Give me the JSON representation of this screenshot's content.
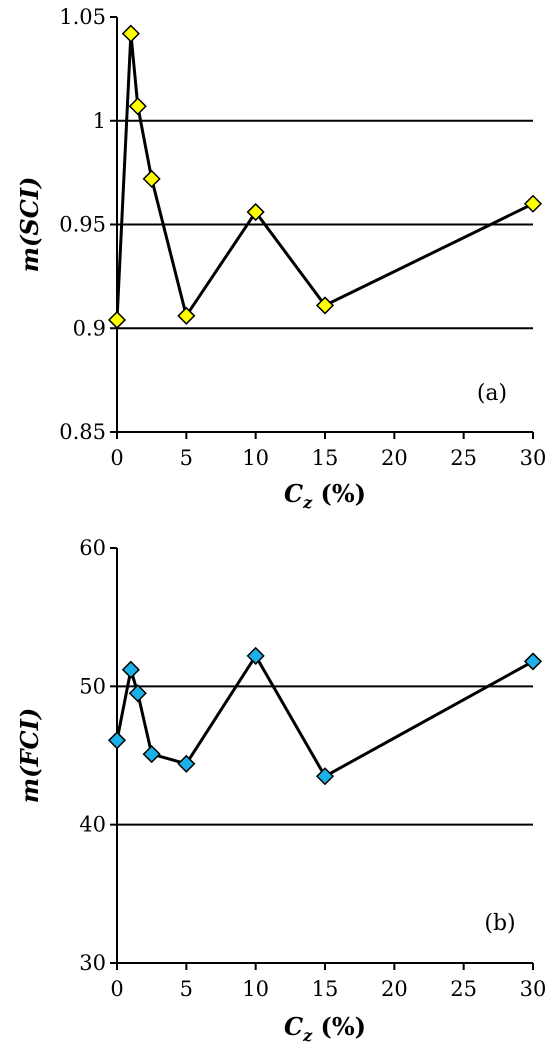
{
  "chart_data": [
    {
      "type": "line",
      "panel_label": "(a)",
      "x": [
        0,
        1,
        1.5,
        2.5,
        5,
        10,
        15,
        30
      ],
      "series": [
        {
          "values": [
            0.904,
            1.042,
            1.007,
            0.972,
            0.906,
            0.956,
            0.911,
            0.96
          ],
          "marker": "diamond",
          "color": "#ffff00"
        }
      ],
      "xlim": [
        0,
        30
      ],
      "ylim": [
        0.85,
        1.05
      ],
      "xticks": [
        0,
        5,
        10,
        15,
        20,
        25,
        30
      ],
      "yticks": [
        0.85,
        0.9,
        0.95,
        1,
        1.05
      ],
      "ytick_labels": [
        "0.85",
        "0.9",
        "0.95",
        "1",
        "1.05"
      ],
      "xlabel_main": "C",
      "xlabel_sub": "z",
      "xlabel_unit": " (%)",
      "ylabel": "m(SCI)",
      "grid": "horizontal"
    },
    {
      "type": "line",
      "panel_label": "(b)",
      "x": [
        0,
        1,
        1.5,
        2.5,
        5,
        10,
        15,
        30
      ],
      "series": [
        {
          "values": [
            46.1,
            51.2,
            49.5,
            45.1,
            44.4,
            52.2,
            43.5,
            51.8
          ],
          "marker": "diamond",
          "color": "#1ab0e8"
        }
      ],
      "xlim": [
        0,
        30
      ],
      "ylim": [
        30,
        60
      ],
      "xticks": [
        0,
        5,
        10,
        15,
        20,
        25,
        30
      ],
      "yticks": [
        30,
        40,
        50,
        60
      ],
      "ytick_labels": [
        "30",
        "40",
        "50",
        "60"
      ],
      "xlabel_main": "C",
      "xlabel_sub": "z",
      "xlabel_unit": " (%)",
      "ylabel": "m(FCI)",
      "grid": "horizontal"
    }
  ]
}
